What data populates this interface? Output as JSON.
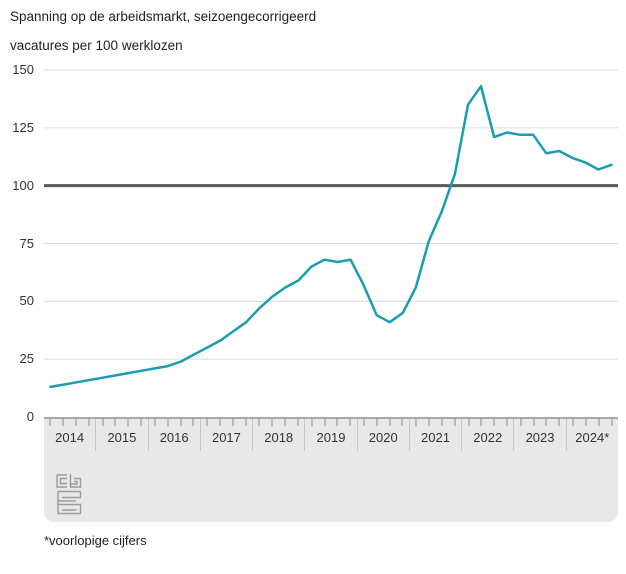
{
  "header": {
    "title": "Spanning op de arbeidsmarkt, seizoengecorrigeerd",
    "subtitle": "vacatures per 100 werklozen"
  },
  "footnote": "*voorlopige cijfers",
  "logo": "cbs-logo",
  "colors": {
    "line": "#1a9cb1",
    "reference_line": "#58585a",
    "gridline": "#dcdcdc",
    "axis_band_bg": "#e8e8e8",
    "axis_border": "#a9a9a9",
    "quarter_tick": "#8a8a8a",
    "year_separator": "#c6c6c6",
    "text": "#333333"
  },
  "chart_data": {
    "type": "line",
    "title": "Spanning op de arbeidsmarkt, seizoengecorrigeerd",
    "ylabel": "vacatures per 100 werklozen",
    "xlabel": "",
    "ylim": [
      0,
      150
    ],
    "yticks": [
      0,
      25,
      50,
      75,
      100,
      125,
      150
    ],
    "reference_line": 100,
    "grid": true,
    "legend": "none",
    "x_years": [
      "2014",
      "2015",
      "2016",
      "2017",
      "2018",
      "2019",
      "2020",
      "2021",
      "2022",
      "2023",
      "2024*"
    ],
    "quarters_per_year": 4,
    "x": [
      "2014 Q1",
      "2014 Q2",
      "2014 Q3",
      "2014 Q4",
      "2015 Q1",
      "2015 Q2",
      "2015 Q3",
      "2015 Q4",
      "2016 Q1",
      "2016 Q2",
      "2016 Q3",
      "2016 Q4",
      "2017 Q1",
      "2017 Q2",
      "2017 Q3",
      "2017 Q4",
      "2018 Q1",
      "2018 Q2",
      "2018 Q3",
      "2018 Q4",
      "2019 Q1",
      "2019 Q2",
      "2019 Q3",
      "2019 Q4",
      "2020 Q1",
      "2020 Q2",
      "2020 Q3",
      "2020 Q4",
      "2021 Q1",
      "2021 Q2",
      "2021 Q3",
      "2021 Q4",
      "2022 Q1",
      "2022 Q2",
      "2022 Q3",
      "2022 Q4",
      "2023 Q1",
      "2023 Q2",
      "2023 Q3",
      "2023 Q4",
      "2024 Q1",
      "2024 Q2",
      "2024 Q3",
      "2024 Q4"
    ],
    "series": [
      {
        "name": "vacatures per 100 werklozen",
        "values": [
          13,
          14,
          15,
          16,
          17,
          18,
          19,
          20,
          21,
          22,
          24,
          27,
          30,
          33,
          37,
          41,
          47,
          52,
          56,
          59,
          65,
          68,
          67,
          68,
          57,
          44,
          41,
          45,
          56,
          76,
          89,
          105,
          135,
          143,
          121,
          123,
          122,
          122,
          114,
          115,
          112,
          110,
          107,
          109
        ]
      }
    ]
  }
}
